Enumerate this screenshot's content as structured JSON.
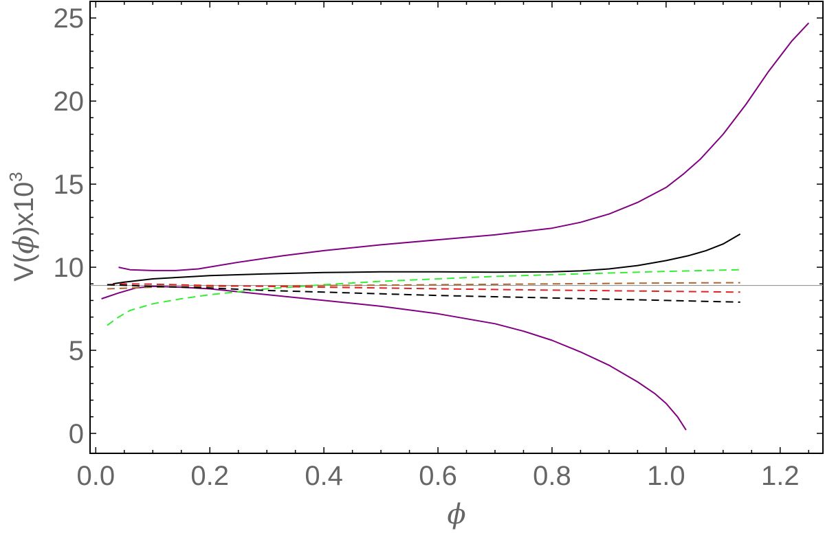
{
  "chart_data": {
    "type": "line",
    "xlabel": "ϕ",
    "ylabel": {
      "base": "V(",
      "symbol": "ϕ",
      "after": ")x10",
      "exponent": "3"
    },
    "xlim": [
      -0.01,
      1.275
    ],
    "ylim": [
      -1.2,
      26
    ],
    "x_ticks": [
      "0.0",
      "0.2",
      "0.4",
      "0.6",
      "0.8",
      "1.0",
      "1.2"
    ],
    "x_tick_values": [
      0.0,
      0.2,
      0.4,
      0.6,
      0.8,
      1.0,
      1.2
    ],
    "y_ticks": [
      "0",
      "5",
      "10",
      "15",
      "20",
      "25"
    ],
    "y_tick_values": [
      0,
      5,
      10,
      15,
      20,
      25
    ],
    "reference_line": {
      "y": 8.9,
      "color": "#888888"
    },
    "grid": false,
    "series": [
      {
        "color": "#800080",
        "style": "solid",
        "x": [
          0.04,
          0.06,
          0.1,
          0.14,
          0.18,
          0.25,
          0.33,
          0.4,
          0.5,
          0.6,
          0.7,
          0.8,
          0.85,
          0.9,
          0.95,
          1.0,
          1.03,
          1.06,
          1.1,
          1.14,
          1.18,
          1.22,
          1.25
        ],
        "y": [
          10.0,
          9.85,
          9.8,
          9.8,
          9.9,
          10.3,
          10.7,
          11.0,
          11.35,
          11.65,
          11.95,
          12.35,
          12.7,
          13.2,
          13.9,
          14.8,
          15.6,
          16.5,
          18.0,
          19.8,
          21.8,
          23.6,
          24.7
        ]
      },
      {
        "color": "#800080",
        "style": "solid",
        "x": [
          0.01,
          0.04,
          0.07,
          0.1,
          0.15,
          0.2,
          0.3,
          0.4,
          0.5,
          0.6,
          0.7,
          0.75,
          0.8,
          0.85,
          0.9,
          0.95,
          0.98,
          1.0,
          1.02,
          1.035
        ],
        "y": [
          8.1,
          8.45,
          8.75,
          8.85,
          8.8,
          8.7,
          8.35,
          8.0,
          7.65,
          7.2,
          6.6,
          6.15,
          5.6,
          4.9,
          4.1,
          3.1,
          2.4,
          1.8,
          1.0,
          0.2
        ]
      },
      {
        "color": "#000000",
        "style": "solid",
        "x": [
          0.03,
          0.05,
          0.1,
          0.15,
          0.2,
          0.3,
          0.4,
          0.5,
          0.6,
          0.7,
          0.8,
          0.85,
          0.9,
          0.95,
          1.0,
          1.04,
          1.07,
          1.1,
          1.13
        ],
        "y": [
          9.0,
          9.1,
          9.3,
          9.4,
          9.5,
          9.6,
          9.68,
          9.72,
          9.72,
          9.7,
          9.72,
          9.78,
          9.9,
          10.1,
          10.4,
          10.7,
          11.0,
          11.4,
          12.0
        ]
      },
      {
        "color": "#33ee33",
        "style": "dashed",
        "x": [
          0.02,
          0.04,
          0.06,
          0.1,
          0.15,
          0.2,
          0.3,
          0.4,
          0.5,
          0.6,
          0.7,
          0.8,
          0.9,
          1.0,
          1.13
        ],
        "y": [
          6.5,
          7.0,
          7.4,
          7.8,
          8.1,
          8.35,
          8.7,
          8.95,
          9.15,
          9.3,
          9.45,
          9.55,
          9.65,
          9.75,
          9.85
        ]
      },
      {
        "color": "#aa6633",
        "style": "dashed",
        "x": [
          0.02,
          0.1,
          0.2,
          0.3,
          0.4,
          0.6,
          0.8,
          1.0,
          1.13
        ],
        "y": [
          8.7,
          8.8,
          8.85,
          8.88,
          8.9,
          8.95,
          9.0,
          9.05,
          9.07
        ]
      },
      {
        "color": "#dd2222",
        "style": "dashed",
        "x": [
          0.02,
          0.05,
          0.1,
          0.2,
          0.3,
          0.4,
          0.6,
          0.8,
          1.0,
          1.13
        ],
        "y": [
          8.95,
          9.0,
          8.98,
          8.9,
          8.85,
          8.8,
          8.7,
          8.62,
          8.55,
          8.5
        ]
      },
      {
        "color": "#000000",
        "style": "dashed",
        "x": [
          0.02,
          0.1,
          0.2,
          0.3,
          0.4,
          0.6,
          0.8,
          1.0,
          1.13
        ],
        "y": [
          8.95,
          8.85,
          8.75,
          8.6,
          8.5,
          8.3,
          8.15,
          8.0,
          7.9
        ]
      }
    ]
  }
}
